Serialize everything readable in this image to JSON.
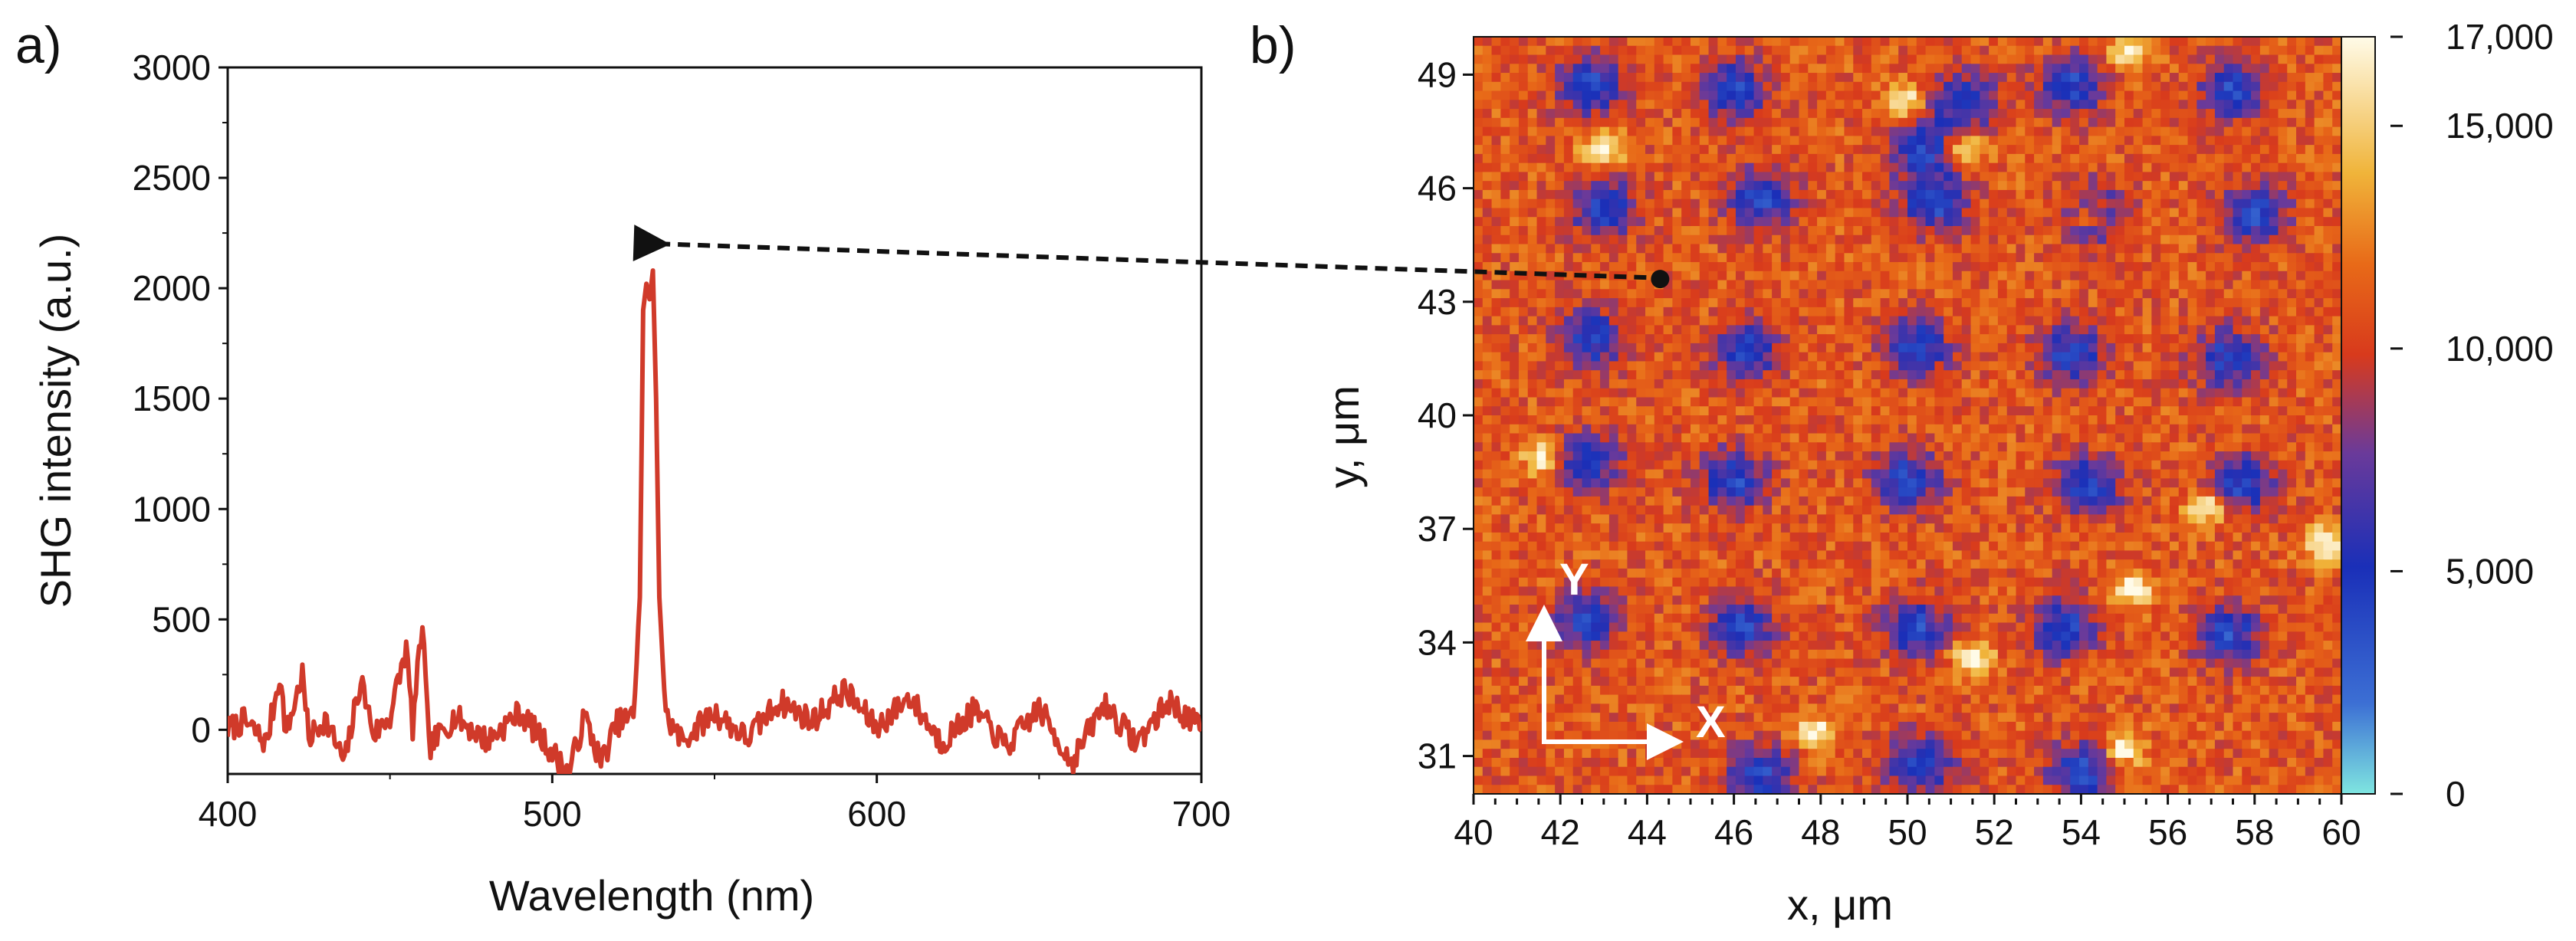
{
  "panels": {
    "a": {
      "label": "a)"
    },
    "b": {
      "label": "b)"
    }
  },
  "colors": {
    "spectrum_line": "#d03a2a",
    "arrow": "#111111",
    "axes": "#111111",
    "overlay": "#ffffff"
  },
  "chart_data": [
    {
      "type": "line",
      "panel": "a",
      "xlabel": "Wavelength (nm)",
      "ylabel": "SHG intensity (a.u.)",
      "xlim": [
        400,
        700
      ],
      "ylim": [
        -200,
        3000
      ],
      "x_ticks": [
        400,
        500,
        600,
        700
      ],
      "x_tick_labels": [
        "400",
        "500",
        "600",
        "700"
      ],
      "y_ticks": [
        0,
        500,
        1000,
        1500,
        2000,
        2500,
        3000
      ],
      "y_tick_labels": [
        "0",
        "500",
        "1000",
        "1500",
        "2000",
        "2500",
        "3000"
      ],
      "grid": false,
      "series": [
        {
          "color": "#d03a2a",
          "noise_level": 60,
          "points": [
            [
              400,
              0
            ],
            [
              405,
              40
            ],
            [
              412,
              -60
            ],
            [
              416,
              250
            ],
            [
              418,
              -20
            ],
            [
              423,
              250
            ],
            [
              425,
              -40
            ],
            [
              430,
              50
            ],
            [
              436,
              -150
            ],
            [
              441,
              230
            ],
            [
              445,
              -20
            ],
            [
              450,
              60
            ],
            [
              455,
              370
            ],
            [
              457,
              10
            ],
            [
              460,
              490
            ],
            [
              462,
              -80
            ],
            [
              470,
              60
            ],
            [
              480,
              -50
            ],
            [
              490,
              80
            ],
            [
              500,
              -100
            ],
            [
              505,
              -200
            ],
            [
              510,
              60
            ],
            [
              515,
              -150
            ],
            [
              520,
              30
            ],
            [
              525,
              60
            ],
            [
              527,
              600
            ],
            [
              528,
              1900
            ],
            [
              529,
              2020
            ],
            [
              530,
              1950
            ],
            [
              531,
              2080
            ],
            [
              532,
              1500
            ],
            [
              533,
              600
            ],
            [
              535,
              60
            ],
            [
              540,
              -50
            ],
            [
              550,
              80
            ],
            [
              560,
              -40
            ],
            [
              570,
              130
            ],
            [
              580,
              40
            ],
            [
              590,
              180
            ],
            [
              600,
              10
            ],
            [
              610,
              150
            ],
            [
              620,
              -60
            ],
            [
              630,
              90
            ],
            [
              640,
              -80
            ],
            [
              650,
              100
            ],
            [
              660,
              -150
            ],
            [
              670,
              120
            ],
            [
              680,
              -60
            ],
            [
              690,
              130
            ],
            [
              700,
              0
            ]
          ]
        }
      ]
    },
    {
      "type": "heatmap",
      "panel": "b",
      "xlabel": "x, μm",
      "ylabel": "y, μm",
      "xlim": [
        40,
        60
      ],
      "ylim": [
        30,
        50
      ],
      "x_ticks": [
        40,
        42,
        44,
        46,
        48,
        50,
        52,
        54,
        56,
        58,
        60
      ],
      "x_tick_labels": [
        "40",
        "42",
        "44",
        "46",
        "48",
        "50",
        "52",
        "54",
        "56",
        "58",
        "60"
      ],
      "y_ticks": [
        31,
        34,
        37,
        40,
        43,
        46,
        49
      ],
      "y_tick_labels": [
        "31",
        "34",
        "37",
        "40",
        "43",
        "46",
        "49"
      ],
      "colorbar": {
        "range": [
          0,
          17000
        ],
        "ticks": [
          0,
          5000,
          10000,
          15000,
          17000
        ],
        "tick_labels": [
          "0",
          "5,000",
          "10,000",
          "15,000",
          "17,000"
        ],
        "stops": [
          [
            0,
            "#7fe5e0"
          ],
          [
            0.12,
            "#3c6fd4"
          ],
          [
            0.3,
            "#1a2fb8"
          ],
          [
            0.45,
            "#6a3a9a"
          ],
          [
            0.58,
            "#d83a1c"
          ],
          [
            0.7,
            "#e86a18"
          ],
          [
            0.82,
            "#f0b43a"
          ],
          [
            1,
            "#fffbe8"
          ]
        ]
      },
      "background_level": 11000,
      "low_spots": [
        [
          42.7,
          48.7
        ],
        [
          46.0,
          48.6
        ],
        [
          51.3,
          48.3
        ],
        [
          53.8,
          48.7
        ],
        [
          57.5,
          48.6
        ],
        [
          50.4,
          47.0
        ],
        [
          43.0,
          45.5
        ],
        [
          46.6,
          45.7
        ],
        [
          50.6,
          45.6
        ],
        [
          54.3,
          45.3
        ],
        [
          58.0,
          45.3
        ],
        [
          42.7,
          42.0
        ],
        [
          46.3,
          41.7
        ],
        [
          50.2,
          41.8
        ],
        [
          53.8,
          41.6
        ],
        [
          57.4,
          41.5
        ],
        [
          42.6,
          38.8
        ],
        [
          46.0,
          38.3
        ],
        [
          50.0,
          38.3
        ],
        [
          54.2,
          38.2
        ],
        [
          57.7,
          38.2
        ],
        [
          42.6,
          34.6
        ],
        [
          46.2,
          34.4
        ],
        [
          50.2,
          34.4
        ],
        [
          53.6,
          34.4
        ],
        [
          57.4,
          34.2
        ],
        [
          46.6,
          30.5
        ],
        [
          50.3,
          30.8
        ],
        [
          54.0,
          30.6
        ]
      ],
      "bright_spots": [
        [
          41.6,
          38.9
        ],
        [
          56.9,
          37.6
        ],
        [
          55.2,
          35.4
        ],
        [
          49.9,
          48.3
        ],
        [
          51.3,
          47.0
        ],
        [
          55.1,
          49.6
        ],
        [
          43.0,
          47.0
        ],
        [
          47.9,
          31.6
        ],
        [
          51.5,
          33.6
        ],
        [
          55.0,
          31.2
        ],
        [
          54.2,
          45.3
        ],
        [
          59.6,
          36.6
        ]
      ],
      "probe_point": [
        44.3,
        43.6
      ],
      "axis_indicator": {
        "x_label": "X",
        "y_label": "Y"
      }
    }
  ]
}
